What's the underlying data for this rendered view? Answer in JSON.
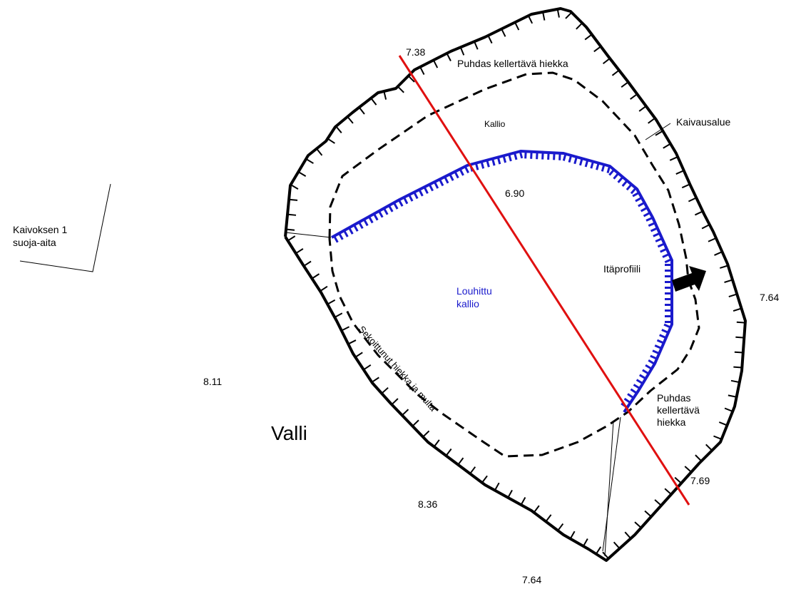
{
  "labels": {
    "profile_top": "7.38",
    "profile_bottom": "7.69",
    "sand_top": "Puhdas kellertävä hiekka",
    "kallio": "Kallio",
    "kaivausalue": "Kaivausalue",
    "elev_center": "6.90",
    "fence_line1": "Kaivoksen 1",
    "fence_line2": "suoja-aita",
    "itaprofiili": "Itäprofiili",
    "louhittu_line1": "Louhittu",
    "louhittu_line2": "kallio",
    "elev_east": "7.64",
    "sekoittunut": "Sekoittunut hiekka ja multa",
    "elev_west": "8.11",
    "sand_se_line1": "Puhdas",
    "sand_se_line2": "kellertävä",
    "sand_se_line3": "hiekka",
    "valli": "Valli",
    "elev_south": "8.36",
    "elev_bottom": "7.64"
  },
  "colors": {
    "excavation_outline": "#000000",
    "rock_edge": "#1a1acc",
    "profile_line": "#e01010",
    "arrow": "#000000"
  },
  "icons": {
    "direction_arrow": "arrow-icon"
  }
}
